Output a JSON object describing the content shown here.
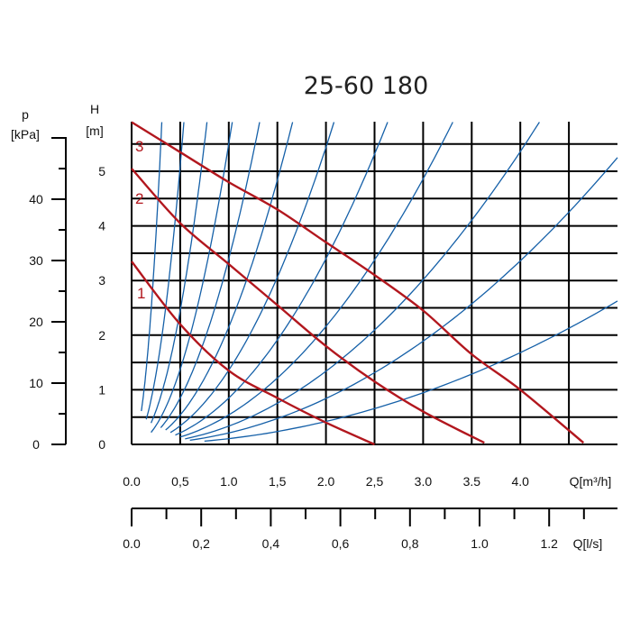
{
  "chart_data": {
    "type": "line",
    "title": "25-60 180",
    "left_axis": {
      "label_line1": "p",
      "label_line2": "[kPa]",
      "unit": "kPa",
      "ticks": [
        "0",
        "10",
        "20",
        "30",
        "40"
      ],
      "range": [
        0,
        58
      ]
    },
    "y_axis": {
      "label_line1": "H",
      "label_line2": "[m]",
      "unit": "m",
      "ticks": [
        "0",
        "1",
        "2",
        "3",
        "4",
        "5"
      ],
      "range": [
        0,
        5.9
      ]
    },
    "x_axis": {
      "label": "Q[m³/h]",
      "unit": "m³/h",
      "ticks": [
        "0.0",
        "0,5",
        "1.0",
        "1,5",
        "2.0",
        "2,5",
        "3.0",
        "3.5",
        "4.0"
      ],
      "range": [
        0,
        5.0
      ]
    },
    "x2_axis": {
      "label": "Q[l/s]",
      "unit": "l/s",
      "ticks": [
        "0.0",
        "0,2",
        "0,4",
        "0,6",
        "0,8",
        "1.0",
        "1.2"
      ],
      "range": [
        0,
        1.39
      ]
    },
    "pump_curves": [
      {
        "name": "1",
        "points": [
          [
            0,
            3.35
          ],
          [
            0.5,
            2.2
          ],
          [
            1.0,
            1.35
          ],
          [
            1.5,
            0.85
          ],
          [
            2.0,
            0.4
          ],
          [
            2.5,
            0.0
          ]
        ]
      },
      {
        "name": "2",
        "points": [
          [
            0,
            5.05
          ],
          [
            0.5,
            4.05
          ],
          [
            1.0,
            3.3
          ],
          [
            1.5,
            2.55
          ],
          [
            2.0,
            1.8
          ],
          [
            2.5,
            1.15
          ],
          [
            3.0,
            0.6
          ],
          [
            3.63,
            0.03
          ]
        ]
      },
      {
        "name": "3",
        "points": [
          [
            0,
            5.9
          ],
          [
            0.5,
            5.35
          ],
          [
            1.0,
            4.8
          ],
          [
            1.5,
            4.3
          ],
          [
            2.0,
            3.7
          ],
          [
            2.5,
            3.1
          ],
          [
            3.0,
            2.45
          ],
          [
            3.5,
            1.65
          ],
          [
            4.0,
            1.0
          ],
          [
            4.65,
            0.03
          ]
        ]
      }
    ],
    "system_curves": [
      {
        "x_start": 0.1,
        "k": 61.0
      },
      {
        "x_start": 0.15,
        "k": 20.4
      },
      {
        "x_start": 0.2,
        "k": 9.8
      },
      {
        "x_start": 0.2,
        "k": 5.5
      },
      {
        "x_start": 0.3,
        "k": 3.4
      },
      {
        "x_start": 0.35,
        "k": 2.15
      },
      {
        "x_start": 0.4,
        "k": 1.36
      },
      {
        "x_start": 0.45,
        "k": 0.85
      },
      {
        "x_start": 0.5,
        "k": 0.54
      },
      {
        "x_start": 0.55,
        "k": 0.335
      },
      {
        "x_start": 0.6,
        "k": 0.21
      },
      {
        "x_start": 0.75,
        "k": 0.105
      }
    ],
    "grid": true,
    "colors": {
      "pump": "#b2171e",
      "system": "#1560a8",
      "grid": "#000000"
    }
  }
}
